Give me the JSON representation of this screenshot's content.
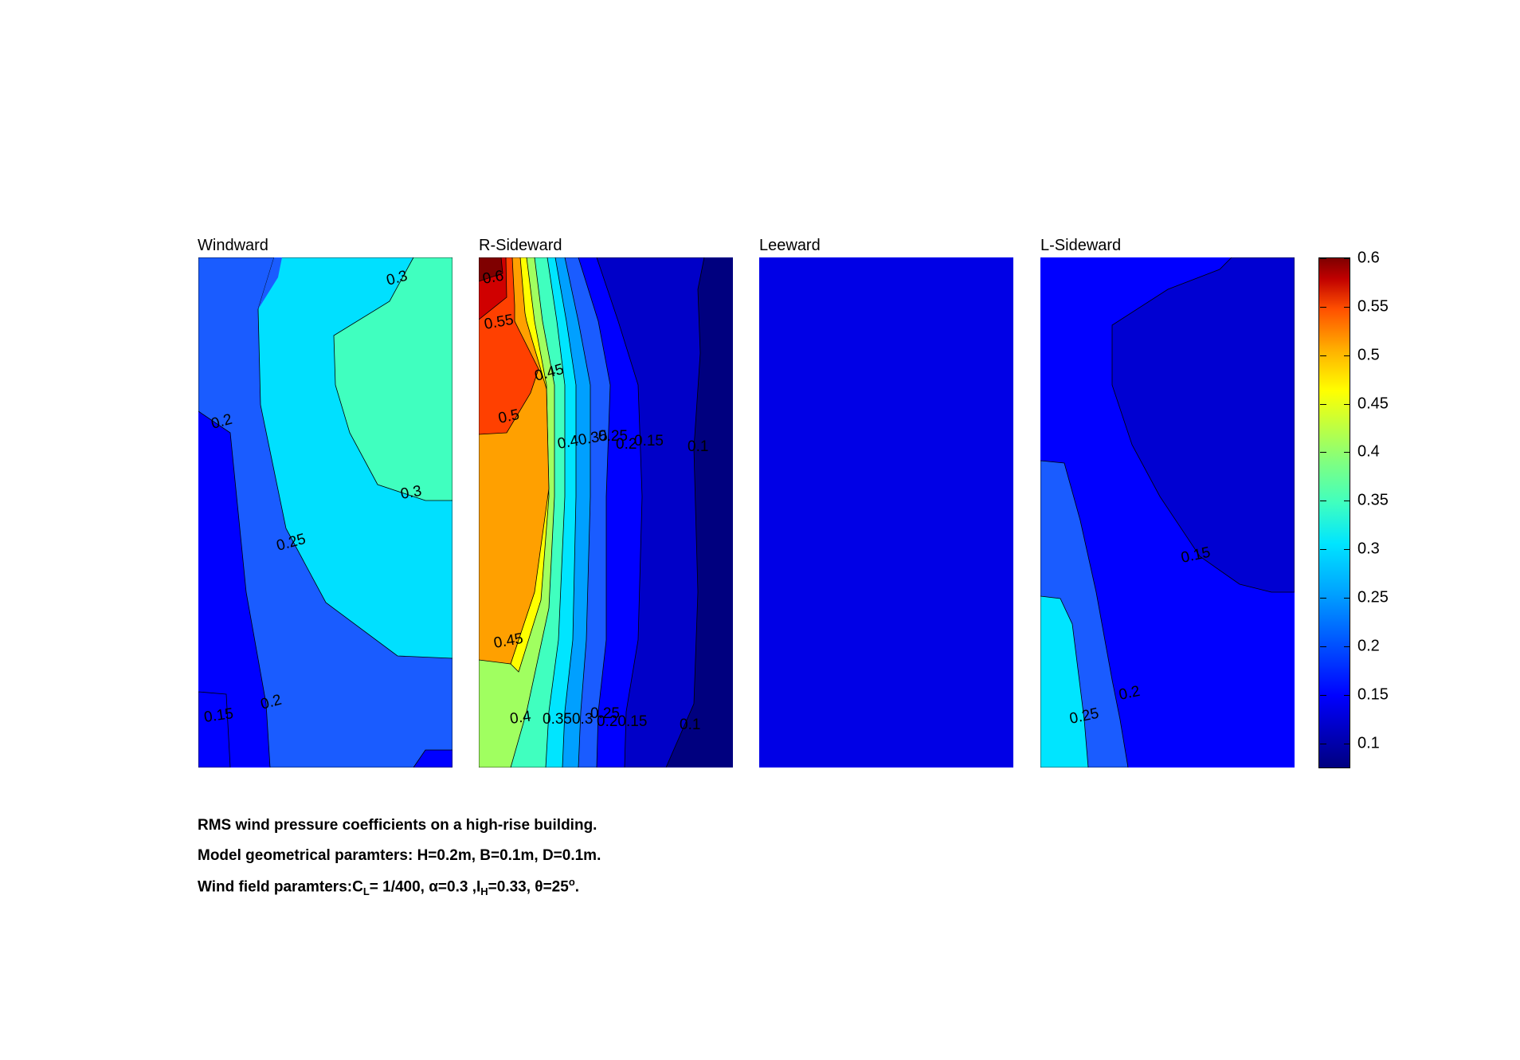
{
  "chart_data": {
    "type": "contour",
    "panels": [
      {
        "title": "Windward",
        "contour_labels": [
          "0.3",
          "0.2",
          "0.3",
          "0.25",
          "0.15",
          "0.2"
        ]
      },
      {
        "title": "R-Sideward",
        "contour_labels": [
          "0.6",
          "0.55",
          "0.45",
          "0.5",
          "0.40.35",
          "0.25",
          "0.2",
          "0.15",
          "0.1",
          "0.45",
          "0.4",
          "0.350.3",
          "0.25",
          "0.20.15",
          "0.1"
        ]
      },
      {
        "title": "Leeward",
        "contour_labels": []
      },
      {
        "title": "L-Sideward",
        "contour_labels": [
          "0.15",
          "0.2",
          "0.25"
        ]
      }
    ],
    "colorbar": {
      "ticks": [
        "0.6",
        "0.55",
        "0.5",
        "0.45",
        "0.4",
        "0.35",
        "0.3",
        "0.25",
        "0.2",
        "0.15",
        "0.1"
      ],
      "range": [
        0.075,
        0.6
      ],
      "colormap": "jet"
    }
  },
  "caption": {
    "line1": "RMS wind pressure coefficients on a high-rise building.",
    "line2": "Model geometrical paramters: H=0.2m, B=0.1m, D=0.1m.",
    "line3_pre": "Wind field paramters:C",
    "line3_sub1": "L",
    "line3_mid1": "= 1/400, α=0.3 ,I",
    "line3_sub2": "H",
    "line3_mid2": "=0.33, θ=25",
    "line3_sup": "o",
    "line3_end": "."
  }
}
